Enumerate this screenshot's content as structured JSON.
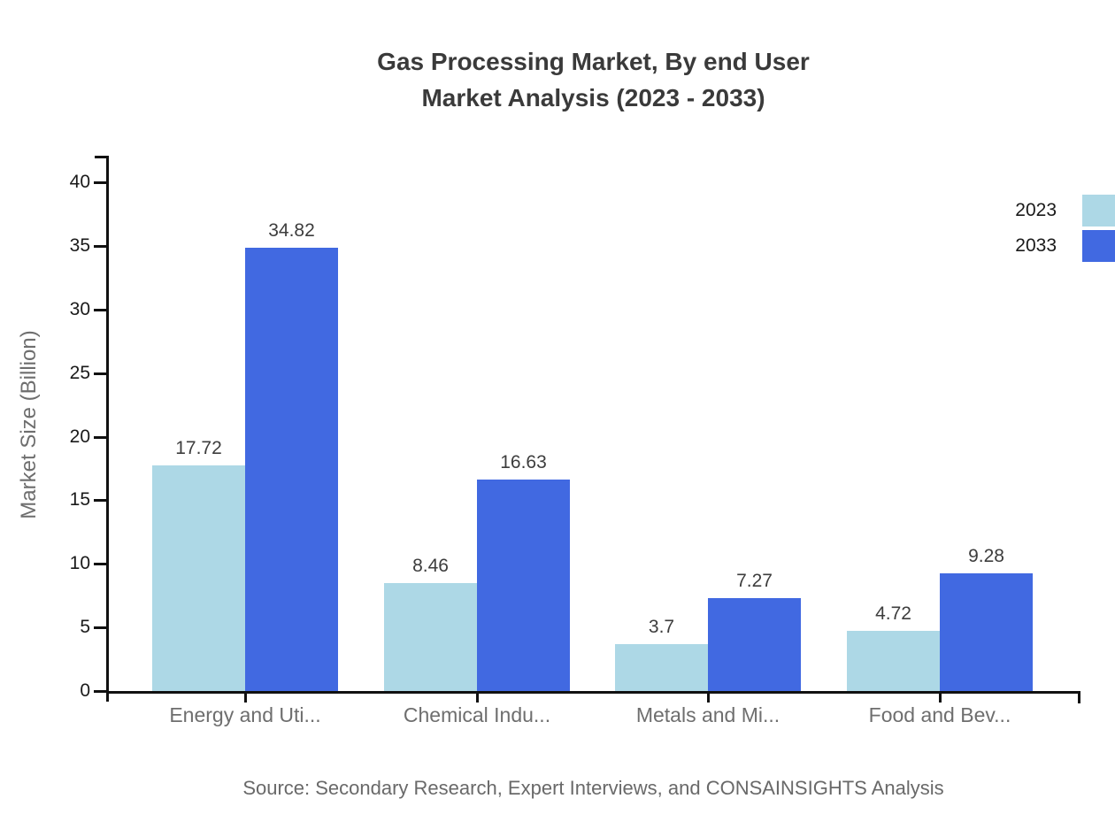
{
  "title": {
    "line1": "Gas Processing Market, By end User",
    "line2": "Market Analysis (2023 - 2033)"
  },
  "source": "Source: Secondary Research, Expert Interviews, and CONSAINSIGHTS Analysis",
  "chart_data": {
    "type": "bar",
    "title": "Gas Processing Market, By end User Market Analysis (2023 - 2033)",
    "categories": [
      "Energy and Uti...",
      "Chemical Indu...",
      "Metals and Mi...",
      "Food and Bev..."
    ],
    "series": [
      {
        "name": "2023",
        "color": "#ADD8E6",
        "values": [
          17.72,
          8.46,
          3.7,
          4.72
        ]
      },
      {
        "name": "2033",
        "color": "#4169E1",
        "values": [
          34.82,
          16.63,
          7.27,
          9.28
        ]
      }
    ],
    "value_labels": {
      "2023": [
        "17.72",
        "8.46",
        "3.7",
        "4.72"
      ],
      "2033": [
        "34.82",
        "16.63",
        "7.27",
        "9.28"
      ]
    },
    "xlabel": "",
    "ylabel": "Market Size (Billion)",
    "ylim": [
      0,
      40
    ],
    "yticks": [
      0,
      5,
      10,
      15,
      20,
      25,
      30,
      35,
      40
    ],
    "grid": false,
    "legend_position": "top-right-edge"
  },
  "colors": {
    "series_2023": "#ADD8E6",
    "series_2033": "#4169E1",
    "axis": "#111111",
    "title_text": "#3a3a3a",
    "value_text": "#3d3d3d",
    "tick_text": "#1a1a1a",
    "muted_text": "#6e6e6e",
    "background": "#ffffff"
  }
}
